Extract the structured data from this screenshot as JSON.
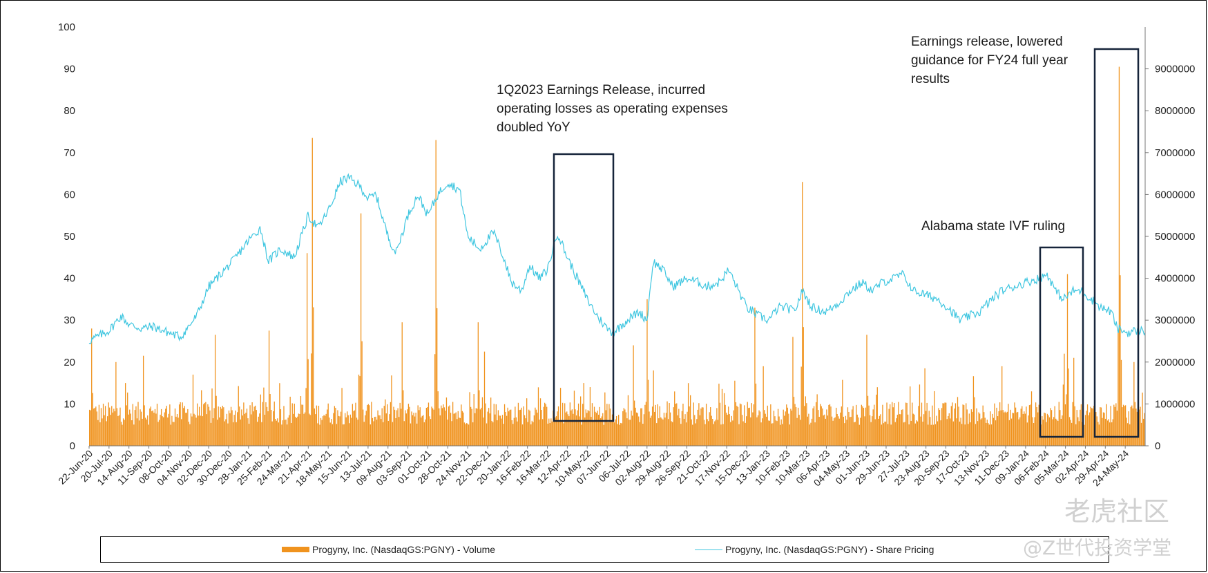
{
  "chart_data": {
    "type": "bar+line",
    "x_tick_labels": [
      "22-Jun-20",
      "20-Jul-20",
      "14-Aug-20",
      "11-Sep-20",
      "08-Oct-20",
      "04-Nov-20",
      "02-Dec-20",
      "30-Dec-20",
      "28-Jan-21",
      "25-Feb-21",
      "24-Mar-21",
      "21-Apr-21",
      "18-May-21",
      "15-Jun-21",
      "13-Jul-21",
      "09-Aug-21",
      "03-Sep-21",
      "01-Oct-21",
      "28-Oct-21",
      "24-Nov-21",
      "22-Dec-21",
      "20-Jan-22",
      "16-Feb-22",
      "16-Mar-22",
      "12-Apr-22",
      "10-May-22",
      "07-Jun-22",
      "06-Jul-22",
      "02-Aug-22",
      "29-Aug-22",
      "26-Sep-22",
      "21-Oct-22",
      "17-Nov-22",
      "15-Dec-22",
      "13-Jan-23",
      "10-Feb-23",
      "10-Mar-23",
      "06-Apr-23",
      "04-May-23",
      "01-Jun-23",
      "29-Jun-23",
      "27-Jul-23",
      "23-Aug-23",
      "20-Sep-23",
      "17-Oct-23",
      "13-Nov-23",
      "11-Dec-23",
      "09-Jan-24",
      "06-Feb-24",
      "05-Mar-24",
      "02-Apr-24",
      "29-Apr-24",
      "24-May-24"
    ],
    "left_axis": {
      "range": [
        0,
        100
      ],
      "ticks": [
        "0",
        "10",
        "20",
        "30",
        "40",
        "50",
        "60",
        "70",
        "80",
        "90",
        "100"
      ]
    },
    "right_axis": {
      "range": [
        0,
        10000000
      ],
      "ticks": [
        "0",
        "1000000",
        "2000000",
        "3000000",
        "4000000",
        "5000000",
        "6000000",
        "7000000",
        "8000000",
        "9000000"
      ]
    },
    "series": [
      {
        "name": "Progyny, Inc. (NasdaqGS:PGNY) - Volume",
        "type": "bar",
        "axis": "right",
        "color": "#f0931e"
      },
      {
        "name": "Progyny, Inc. (NasdaqGS:PGNY) - Share Pricing",
        "type": "line",
        "axis": "left",
        "color": "#3fc6e0"
      }
    ],
    "price_keypoints": [
      {
        "t": 0.0,
        "v": 25.0
      },
      {
        "t": 0.4,
        "v": 26.0
      },
      {
        "t": 1.0,
        "v": 27.5
      },
      {
        "t": 1.6,
        "v": 31.0
      },
      {
        "t": 2.0,
        "v": 29.0
      },
      {
        "t": 2.6,
        "v": 28.0
      },
      {
        "t": 3.2,
        "v": 28.5
      },
      {
        "t": 4.0,
        "v": 27.0
      },
      {
        "t": 4.6,
        "v": 26.0
      },
      {
        "t": 5.4,
        "v": 31.0
      },
      {
        "t": 6.0,
        "v": 38.0
      },
      {
        "t": 6.6,
        "v": 41.0
      },
      {
        "t": 7.2,
        "v": 44.0
      },
      {
        "t": 8.0,
        "v": 49.0
      },
      {
        "t": 8.6,
        "v": 52.0
      },
      {
        "t": 9.0,
        "v": 44.0
      },
      {
        "t": 9.6,
        "v": 47.0
      },
      {
        "t": 10.3,
        "v": 45.0
      },
      {
        "t": 11.0,
        "v": 55.0
      },
      {
        "t": 11.5,
        "v": 52.0
      },
      {
        "t": 12.1,
        "v": 57.0
      },
      {
        "t": 12.6,
        "v": 63.0
      },
      {
        "t": 13.0,
        "v": 64.0
      },
      {
        "t": 13.6,
        "v": 62.0
      },
      {
        "t": 14.0,
        "v": 59.0
      },
      {
        "t": 14.4,
        "v": 60.0
      },
      {
        "t": 15.0,
        "v": 50.0
      },
      {
        "t": 15.4,
        "v": 46.0
      },
      {
        "t": 16.0,
        "v": 55.0
      },
      {
        "t": 16.5,
        "v": 60.0
      },
      {
        "t": 17.0,
        "v": 55.0
      },
      {
        "t": 17.5,
        "v": 60.0
      },
      {
        "t": 18.0,
        "v": 63.0
      },
      {
        "t": 18.6,
        "v": 61.0
      },
      {
        "t": 19.0,
        "v": 50.0
      },
      {
        "t": 19.6,
        "v": 47.0
      },
      {
        "t": 20.3,
        "v": 51.0
      },
      {
        "t": 20.8,
        "v": 45.0
      },
      {
        "t": 21.2,
        "v": 39.0
      },
      {
        "t": 21.7,
        "v": 37.0
      },
      {
        "t": 22.1,
        "v": 43.0
      },
      {
        "t": 22.6,
        "v": 40.0
      },
      {
        "t": 23.0,
        "v": 42.0
      },
      {
        "t": 23.5,
        "v": 51.0
      },
      {
        "t": 24.0,
        "v": 45.0
      },
      {
        "t": 24.5,
        "v": 40.0
      },
      {
        "t": 25.0,
        "v": 35.0
      },
      {
        "t": 25.5,
        "v": 31.0
      },
      {
        "t": 26.0,
        "v": 28.0
      },
      {
        "t": 26.3,
        "v": 27.0
      },
      {
        "t": 27.0,
        "v": 30.0
      },
      {
        "t": 27.6,
        "v": 32.0
      },
      {
        "t": 28.0,
        "v": 30.0
      },
      {
        "t": 28.3,
        "v": 44.0
      },
      {
        "t": 28.8,
        "v": 42.0
      },
      {
        "t": 29.3,
        "v": 38.0
      },
      {
        "t": 30.0,
        "v": 40.0
      },
      {
        "t": 30.6,
        "v": 39.0
      },
      {
        "t": 31.0,
        "v": 38.0
      },
      {
        "t": 31.6,
        "v": 39.0
      },
      {
        "t": 32.1,
        "v": 42.0
      },
      {
        "t": 32.6,
        "v": 37.0
      },
      {
        "t": 33.0,
        "v": 33.0
      },
      {
        "t": 33.6,
        "v": 31.0
      },
      {
        "t": 34.1,
        "v": 30.0
      },
      {
        "t": 34.6,
        "v": 33.0
      },
      {
        "t": 35.0,
        "v": 33.0
      },
      {
        "t": 35.4,
        "v": 32.0
      },
      {
        "t": 35.8,
        "v": 37.0
      },
      {
        "t": 36.3,
        "v": 33.0
      },
      {
        "t": 37.0,
        "v": 32.0
      },
      {
        "t": 37.6,
        "v": 34.0
      },
      {
        "t": 38.2,
        "v": 37.0
      },
      {
        "t": 38.8,
        "v": 39.0
      },
      {
        "t": 39.3,
        "v": 37.0
      },
      {
        "t": 39.8,
        "v": 39.0
      },
      {
        "t": 40.4,
        "v": 40.0
      },
      {
        "t": 40.8,
        "v": 41.0
      },
      {
        "t": 41.4,
        "v": 37.0
      },
      {
        "t": 42.0,
        "v": 36.0
      },
      {
        "t": 42.6,
        "v": 35.0
      },
      {
        "t": 43.1,
        "v": 33.0
      },
      {
        "t": 43.7,
        "v": 30.0
      },
      {
        "t": 44.2,
        "v": 31.0
      },
      {
        "t": 44.7,
        "v": 32.0
      },
      {
        "t": 45.3,
        "v": 35.0
      },
      {
        "t": 45.8,
        "v": 37.0
      },
      {
        "t": 46.4,
        "v": 38.0
      },
      {
        "t": 47.0,
        "v": 39.0
      },
      {
        "t": 47.7,
        "v": 40.0
      },
      {
        "t": 48.1,
        "v": 41.0
      },
      {
        "t": 48.5,
        "v": 37.0
      },
      {
        "t": 48.9,
        "v": 35.0
      },
      {
        "t": 49.4,
        "v": 37.0
      },
      {
        "t": 49.8,
        "v": 37.0
      },
      {
        "t": 50.3,
        "v": 35.0
      },
      {
        "t": 50.8,
        "v": 33.0
      },
      {
        "t": 51.3,
        "v": 32.0
      },
      {
        "t": 51.6,
        "v": 28.0
      },
      {
        "t": 52.1,
        "v": 27.0
      },
      {
        "t": 52.6,
        "v": 27.5
      },
      {
        "t": 53.0,
        "v": 27.5
      }
    ],
    "volume_spikes": [
      {
        "t": 0.1,
        "v": 2800000
      },
      {
        "t": 1.3,
        "v": 2000000
      },
      {
        "t": 1.8,
        "v": 1500000
      },
      {
        "t": 2.7,
        "v": 2150000
      },
      {
        "t": 5.2,
        "v": 1700000
      },
      {
        "t": 6.3,
        "v": 2650000
      },
      {
        "t": 9.0,
        "v": 2750000
      },
      {
        "t": 11.2,
        "v": 7350000
      },
      {
        "t": 10.9,
        "v": 4600000
      },
      {
        "t": 13.5,
        "v": 1700000
      },
      {
        "t": 13.6,
        "v": 5550000
      },
      {
        "t": 15.7,
        "v": 2950000
      },
      {
        "t": 17.4,
        "v": 7300000
      },
      {
        "t": 19.5,
        "v": 2950000
      },
      {
        "t": 19.8,
        "v": 2250000
      },
      {
        "t": 24.8,
        "v": 1500000
      },
      {
        "t": 28.0,
        "v": 3500000
      },
      {
        "t": 27.3,
        "v": 2400000
      },
      {
        "t": 28.3,
        "v": 1800000
      },
      {
        "t": 33.4,
        "v": 3300000
      },
      {
        "t": 33.8,
        "v": 1900000
      },
      {
        "t": 35.3,
        "v": 2600000
      },
      {
        "t": 35.8,
        "v": 6300000
      },
      {
        "t": 39.0,
        "v": 2650000
      },
      {
        "t": 41.9,
        "v": 1850000
      },
      {
        "t": 45.8,
        "v": 1900000
      },
      {
        "t": 48.9,
        "v": 2200000
      },
      {
        "t": 49.1,
        "v": 4100000
      },
      {
        "t": 49.4,
        "v": 2100000
      },
      {
        "t": 51.7,
        "v": 9050000
      },
      {
        "t": 51.8,
        "v": 2050000
      },
      {
        "t": 52.4,
        "v": 2000000
      }
    ]
  },
  "annotations": [
    {
      "text": "1Q2023 Earnings Release, incurred\noperating losses as operating expenses\ndoubled YoY"
    },
    {
      "text": "Earnings release, lowered\nguidance for FY24 full year\nresults"
    },
    {
      "text": "Alabama state IVF ruling"
    }
  ],
  "legend": {
    "volume_label": "Progyny, Inc. (NasdaqGS:PGNY) - Volume",
    "price_label": "Progyny, Inc. (NasdaqGS:PGNY) - Share Pricing"
  },
  "watermark": {
    "line1": "老虎社区",
    "line2": "@Z世代投资学堂"
  }
}
